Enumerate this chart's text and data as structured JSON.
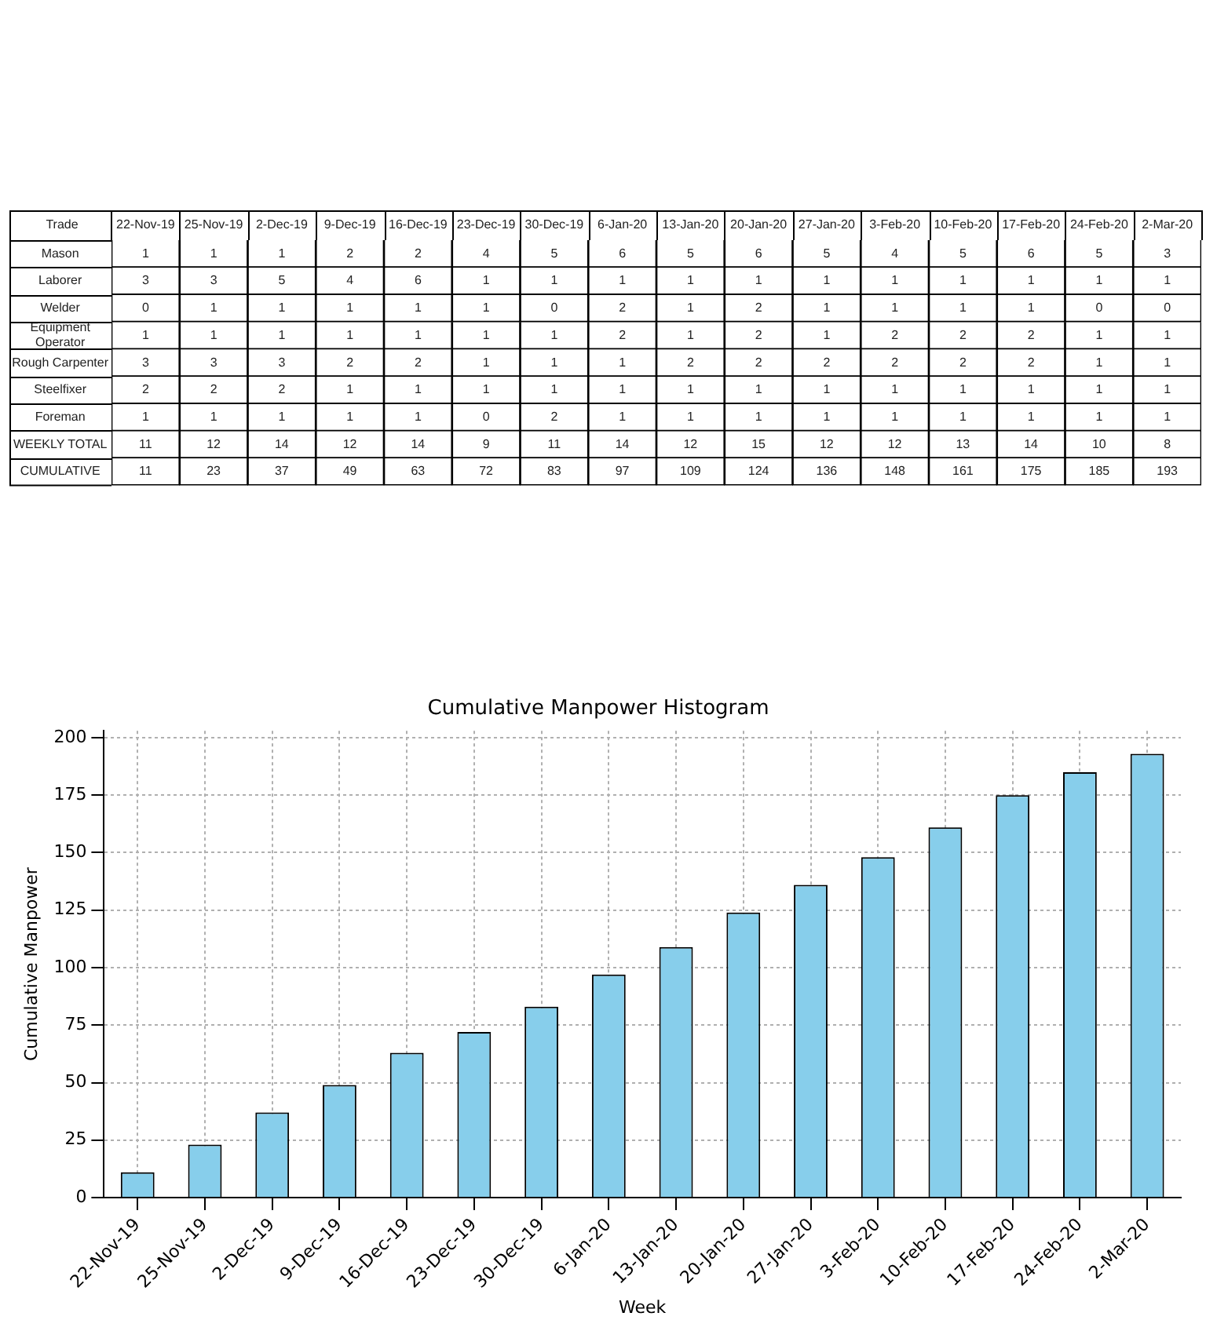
{
  "chart_data": [
    {
      "type": "heatmap",
      "ylabel": "Trade",
      "data_labels": true,
      "categories": [
        "22-Nov-19",
        "25-Nov-19",
        "2-Dec-19",
        "9-Dec-19",
        "16-Dec-19",
        "23-Dec-19",
        "30-Dec-19",
        "6-Jan-20",
        "13-Jan-20",
        "20-Jan-20",
        "27-Jan-20",
        "3-Feb-20",
        "10-Feb-20",
        "17-Feb-20",
        "24-Feb-20",
        "2-Mar-20"
      ],
      "y_categories": [
        "Mason",
        "Laborer",
        "Welder",
        "Equipment Operator",
        "Rough Carpenter",
        "Steelfixer",
        "Foreman",
        "WEEKLY TOTAL",
        "CUMULATIVE"
      ],
      "cells": [
        [
          1,
          1,
          1,
          2,
          2,
          4,
          5,
          6,
          5,
          6,
          5,
          4,
          5,
          6,
          5,
          3
        ],
        [
          3,
          3,
          5,
          4,
          6,
          1,
          1,
          1,
          1,
          1,
          1,
          1,
          1,
          1,
          1,
          1
        ],
        [
          0,
          1,
          1,
          1,
          1,
          1,
          0,
          2,
          1,
          2,
          1,
          1,
          1,
          1,
          0,
          0
        ],
        [
          1,
          1,
          1,
          1,
          1,
          1,
          1,
          2,
          1,
          2,
          1,
          2,
          2,
          2,
          1,
          1
        ],
        [
          3,
          3,
          3,
          2,
          2,
          1,
          1,
          1,
          2,
          2,
          2,
          2,
          2,
          2,
          1,
          1
        ],
        [
          2,
          2,
          2,
          1,
          1,
          1,
          1,
          1,
          1,
          1,
          1,
          1,
          1,
          1,
          1,
          1
        ],
        [
          1,
          1,
          1,
          1,
          1,
          0,
          2,
          1,
          1,
          1,
          1,
          1,
          1,
          1,
          1,
          1
        ],
        [
          11,
          12,
          14,
          12,
          14,
          9,
          11,
          14,
          12,
          15,
          12,
          12,
          13,
          14,
          10,
          8
        ],
        [
          11,
          23,
          37,
          49,
          63,
          72,
          83,
          97,
          109,
          124,
          136,
          148,
          161,
          175,
          185,
          193
        ]
      ]
    },
    {
      "type": "bar",
      "title": "Cumulative Manpower Histogram",
      "xlabel": "Week",
      "ylabel": "Cumulative Manpower",
      "categories": [
        "22-Nov-19",
        "25-Nov-19",
        "2-Dec-19",
        "9-Dec-19",
        "16-Dec-19",
        "23-Dec-19",
        "30-Dec-19",
        "6-Jan-20",
        "13-Jan-20",
        "20-Jan-20",
        "27-Jan-20",
        "3-Feb-20",
        "10-Feb-20",
        "17-Feb-20",
        "24-Feb-20",
        "2-Mar-20"
      ],
      "values": [
        11,
        23,
        37,
        49,
        63,
        72,
        83,
        97,
        109,
        124,
        136,
        148,
        161,
        175,
        185,
        193
      ],
      "color": "#87ceeb",
      "ylim": [
        0,
        203
      ],
      "yticks": [
        0,
        25,
        50,
        75,
        100,
        125,
        150,
        175,
        200
      ],
      "grid": true
    }
  ]
}
